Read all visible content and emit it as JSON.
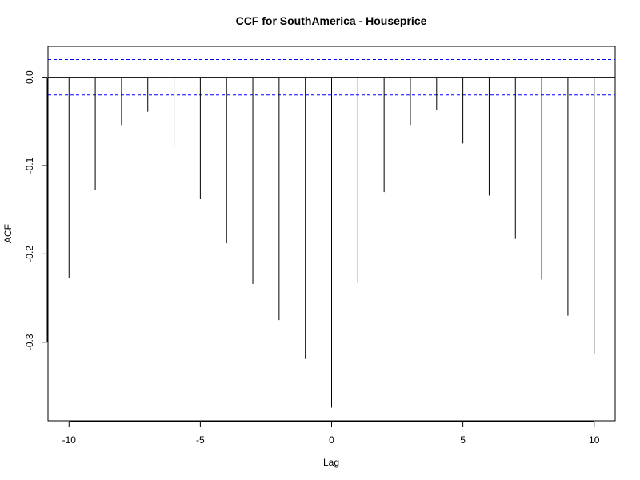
{
  "chart_data": {
    "type": "bar",
    "title": "CCF for SouthAmerica - Houseprice",
    "xlabel": "Lag",
    "ylabel": "ACF",
    "x": [
      -10,
      -9,
      -8,
      -7,
      -6,
      -5,
      -4,
      -3,
      -2,
      -1,
      0,
      1,
      2,
      3,
      4,
      5,
      6,
      7,
      8,
      9,
      10
    ],
    "values": [
      -0.227,
      -0.128,
      -0.054,
      -0.039,
      -0.078,
      -0.138,
      -0.188,
      -0.234,
      -0.275,
      -0.319,
      -0.374,
      -0.233,
      -0.13,
      -0.054,
      -0.037,
      -0.075,
      -0.134,
      -0.183,
      -0.229,
      -0.27,
      -0.313
    ],
    "confidence_band": [
      0.02,
      -0.02
    ],
    "xlim": [
      -10.8,
      10.8
    ],
    "ylim": [
      -0.389,
      0.035
    ],
    "xticks": [
      -10,
      -5,
      0,
      5,
      10
    ],
    "xtick_labels": [
      "-10",
      "-5",
      "0",
      "5",
      "10"
    ],
    "yticks": [
      0.0,
      -0.1,
      -0.2,
      -0.3
    ],
    "ytick_labels": [
      "0.0",
      "-0.1",
      "-0.2",
      "-0.3"
    ],
    "colors": {
      "bars": "#000000",
      "band": "#0000ff",
      "zero_line": "#000000"
    }
  }
}
